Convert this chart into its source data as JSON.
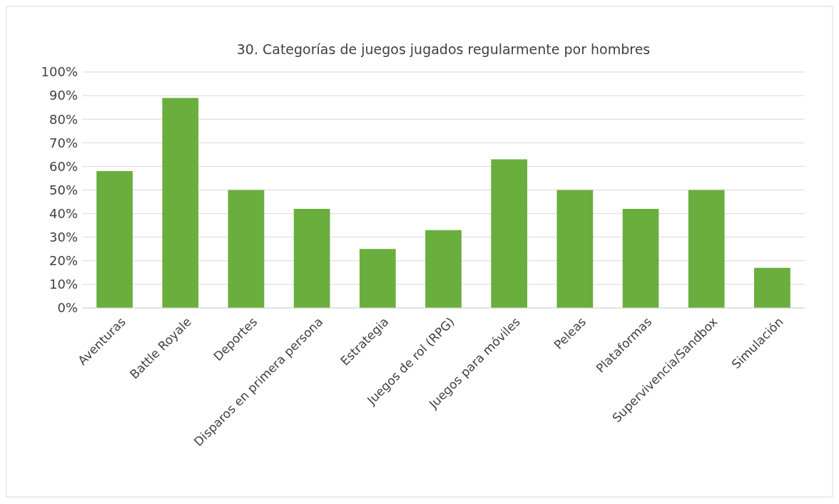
{
  "chart_data": {
    "type": "bar",
    "title": "30. Categorías de juegos jugados regularmente por hombres",
    "categories": [
      "Aventuras",
      "Battle Royale",
      "Deportes",
      "Disparos en primera persona",
      "Estrategia",
      "Juegos de rol (RPG)",
      "Juegos para móviles",
      "Peleas",
      "Plataformas",
      "Supervivencia/Sandbox",
      "Simulación"
    ],
    "values": [
      58,
      89,
      50,
      42,
      25,
      33,
      63,
      50,
      42,
      50,
      17
    ],
    "color": "#6aae3d",
    "ylim": [
      0,
      100
    ],
    "yticks": [
      {
        "value": 0,
        "label": "0%"
      },
      {
        "value": 10,
        "label": "10%"
      },
      {
        "value": 20,
        "label": "20%"
      },
      {
        "value": 30,
        "label": "30%"
      },
      {
        "value": 40,
        "label": "40%"
      },
      {
        "value": 50,
        "label": "50%"
      },
      {
        "value": 60,
        "label": "60%"
      },
      {
        "value": 70,
        "label": "70%"
      },
      {
        "value": 80,
        "label": "80%"
      },
      {
        "value": 90,
        "label": "90%"
      },
      {
        "value": 100,
        "label": "100%"
      }
    ],
    "grid": "y"
  }
}
